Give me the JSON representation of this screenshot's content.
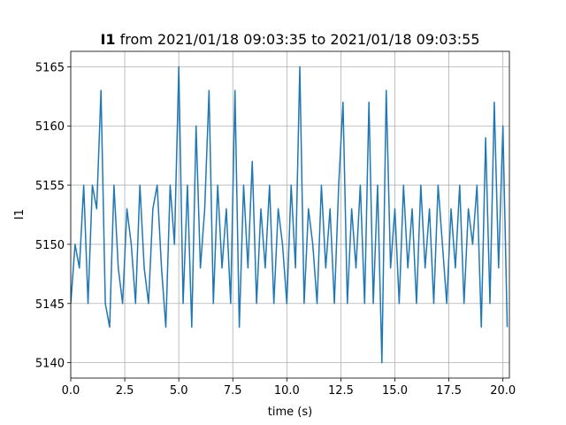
{
  "chart_data": {
    "type": "line",
    "title": {
      "bold": "I1",
      "rest": "from 2021/01/18 09:03:35 to 2021/01/18 09:03:55"
    },
    "xlabel": "time (s)",
    "ylabel": "I1",
    "x": [
      0.0,
      0.2,
      0.4,
      0.6,
      0.8,
      1.0,
      1.2,
      1.4,
      1.6,
      1.8,
      2.0,
      2.2,
      2.4,
      2.6,
      2.8,
      3.0,
      3.2,
      3.4,
      3.6,
      3.8,
      4.0,
      4.2,
      4.4,
      4.6,
      4.8,
      5.0,
      5.2,
      5.4,
      5.6,
      5.8,
      6.0,
      6.2,
      6.4,
      6.6,
      6.8,
      7.0,
      7.2,
      7.4,
      7.6,
      7.8,
      8.0,
      8.2,
      8.4,
      8.6,
      8.8,
      9.0,
      9.2,
      9.4,
      9.6,
      9.8,
      10.0,
      10.2,
      10.4,
      10.6,
      10.8,
      11.0,
      11.2,
      11.4,
      11.6,
      11.8,
      12.0,
      12.2,
      12.4,
      12.6,
      12.8,
      13.0,
      13.2,
      13.4,
      13.6,
      13.8,
      14.0,
      14.2,
      14.4,
      14.6,
      14.8,
      15.0,
      15.2,
      15.4,
      15.6,
      15.8,
      16.0,
      16.2,
      16.4,
      16.6,
      16.8,
      17.0,
      17.2,
      17.4,
      17.6,
      17.8,
      18.0,
      18.2,
      18.4,
      18.6,
      18.8,
      19.0,
      19.2,
      19.4,
      19.6,
      19.8,
      20.0,
      20.2
    ],
    "series": [
      {
        "name": "I1",
        "color": "#1f77b4",
        "values": [
          5145,
          5150,
          5148,
          5155,
          5145,
          5155,
          5153,
          5163,
          5145,
          5143,
          5155,
          5148,
          5145,
          5153,
          5150,
          5145,
          5155,
          5148,
          5145,
          5153,
          5155,
          5148,
          5143,
          5155,
          5150,
          5165,
          5145,
          5155,
          5143,
          5160,
          5148,
          5153,
          5163,
          5145,
          5155,
          5148,
          5153,
          5145,
          5163,
          5143,
          5155,
          5148,
          5157,
          5145,
          5153,
          5148,
          5155,
          5145,
          5153,
          5150,
          5145,
          5155,
          5148,
          5165,
          5145,
          5153,
          5150,
          5145,
          5155,
          5148,
          5153,
          5145,
          5155,
          5162,
          5145,
          5153,
          5148,
          5155,
          5145,
          5162,
          5145,
          5155,
          5140,
          5163,
          5148,
          5153,
          5145,
          5155,
          5148,
          5153,
          5145,
          5155,
          5148,
          5153,
          5145,
          5155,
          5150,
          5145,
          5153,
          5148,
          5155,
          5145,
          5153,
          5150,
          5155,
          5143,
          5159,
          5145,
          5162,
          5148,
          5160,
          5143
        ]
      }
    ],
    "xlim": [
      0,
      20.3
    ],
    "xticks": [
      {
        "value": 0,
        "label": "0.0"
      },
      2.5,
      {
        "value": 5,
        "label": "5.0"
      },
      7.5,
      {
        "value": 10,
        "label": "10.0"
      },
      12.5,
      {
        "value": 15,
        "label": "15.0"
      },
      17.5,
      {
        "value": 20,
        "label": "20.0"
      }
    ],
    "ylim": [
      5138.7,
      5166.3
    ],
    "yticks": [
      5140,
      5145,
      5150,
      5155,
      5160,
      5165
    ],
    "grid": true
  }
}
